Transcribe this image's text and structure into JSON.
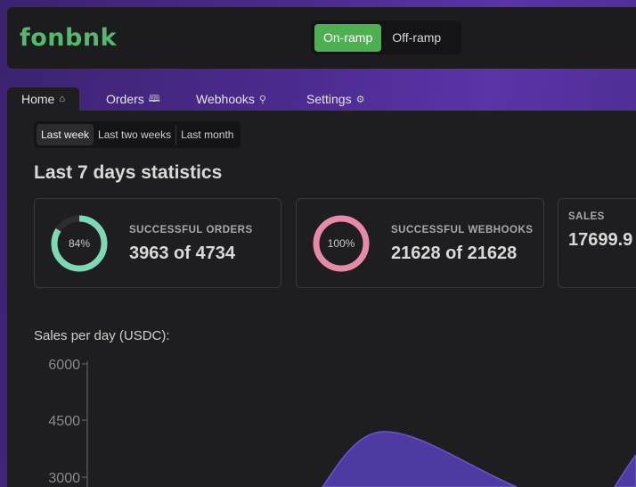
{
  "brand": {
    "logo_text": "fonbnk",
    "logo_color": "#55b86a"
  },
  "ramp_toggle": {
    "on_ramp": "On-ramp",
    "off_ramp": "Off-ramp",
    "active": "On-ramp"
  },
  "tabs": [
    {
      "label": "Home",
      "icon": "home-icon",
      "active": true
    },
    {
      "label": "Orders",
      "icon": "book-icon",
      "active": false
    },
    {
      "label": "Webhooks",
      "icon": "webhook-icon",
      "active": false
    },
    {
      "label": "Settings",
      "icon": "gear-icon",
      "active": false
    }
  ],
  "period": {
    "options": [
      "Last week",
      "Last two weeks",
      "Last month"
    ],
    "selected": "Last week"
  },
  "heading": "Last 7 days statistics",
  "cards": {
    "orders": {
      "title": "SUCCESSFUL ORDERS",
      "value": "3963 of 4734",
      "percent_label": "84%",
      "percent": 84,
      "color": "#7dd8b5"
    },
    "webhooks": {
      "title": "SUCCESSFUL WEBHOOKS",
      "value": "21628 of 21628",
      "percent_label": "100%",
      "percent": 100,
      "color": "#e68aa6"
    },
    "sales": {
      "title": "SALES",
      "value": "17699.9"
    }
  },
  "chart_data": {
    "type": "area",
    "title": "Sales per day (USDC):",
    "y_ticks": [
      "6000",
      "4500",
      "3000"
    ],
    "ylim": [
      0,
      6000
    ],
    "series_color": "#4e3aa0"
  }
}
